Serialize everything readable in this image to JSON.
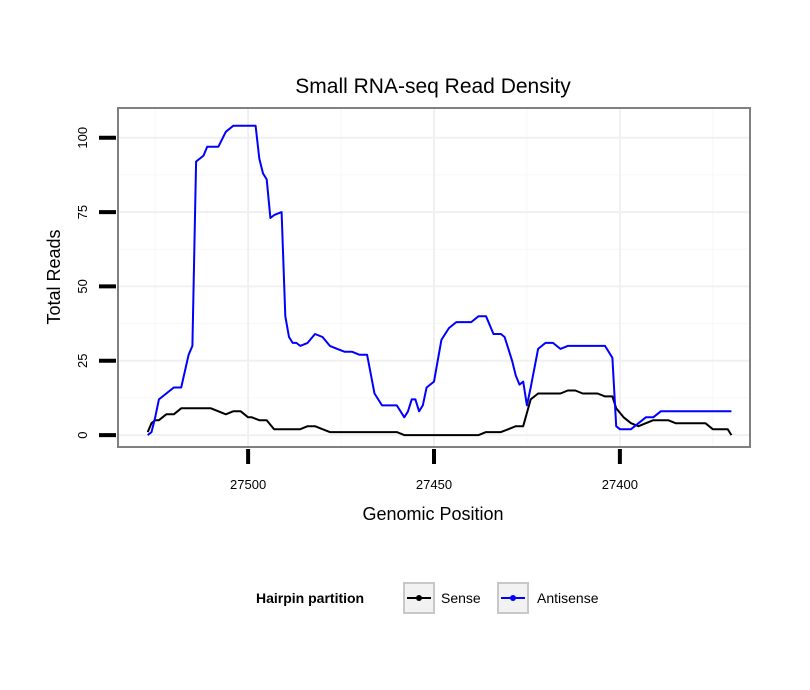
{
  "chart_data": {
    "type": "line",
    "title": "Small RNA-seq Read Density",
    "xlabel": "Genomic Position",
    "ylabel": "Total Reads",
    "x_reversed": true,
    "xlim": [
      27535,
      27365
    ],
    "ylim": [
      -4,
      110
    ],
    "x_ticks": [
      27500,
      27450,
      27400
    ],
    "x_tick_labels": [
      "27500",
      "27450",
      "27400"
    ],
    "y_ticks": [
      0,
      25,
      50,
      75,
      100
    ],
    "y_tick_labels": [
      "0",
      "25",
      "50",
      "75",
      "100"
    ],
    "grid": true,
    "legend": {
      "title": "Hairpin partition",
      "position": "bottom",
      "entries": [
        "Sense",
        "Antisense"
      ]
    },
    "series": [
      {
        "name": "Sense",
        "color": "#000000",
        "x": [
          27527,
          27526,
          27525,
          27524,
          27522,
          27520,
          27518,
          27516,
          27514,
          27512,
          27510,
          27508,
          27506,
          27504,
          27502,
          27500,
          27499,
          27497,
          27495,
          27493,
          27490,
          27488,
          27486,
          27484,
          27482,
          27480,
          27478,
          27476,
          27474,
          27472,
          27470,
          27468,
          27466,
          27464,
          27462,
          27460,
          27458,
          27456,
          27454,
          27452,
          27450,
          27448,
          27446,
          27444,
          27442,
          27440,
          27438,
          27436,
          27434,
          27432,
          27430,
          27428,
          27426,
          27424,
          27422,
          27420,
          27418,
          27416,
          27414,
          27412,
          27410,
          27408,
          27406,
          27404,
          27402,
          27401,
          27399,
          27397,
          27395,
          27393,
          27391,
          27389,
          27387,
          27385,
          27383,
          27381,
          27379,
          27377,
          27375,
          27373,
          27371,
          27370
        ],
        "values": [
          1,
          4,
          5,
          5,
          7,
          7,
          9,
          9,
          9,
          9,
          9,
          8,
          7,
          8,
          8,
          6,
          6,
          5,
          5,
          2,
          2,
          2,
          2,
          3,
          3,
          2,
          1,
          1,
          1,
          1,
          1,
          1,
          1,
          1,
          1,
          1,
          0,
          0,
          0,
          0,
          0,
          0,
          0,
          0,
          0,
          0,
          0,
          1,
          1,
          1,
          2,
          3,
          3,
          12,
          14,
          14,
          14,
          14,
          15,
          15,
          14,
          14,
          14,
          13,
          13,
          9,
          6,
          4,
          3,
          4,
          5,
          5,
          5,
          4,
          4,
          4,
          4,
          4,
          2,
          2,
          2,
          0
        ]
      },
      {
        "name": "Antisense",
        "color": "#0000ff",
        "x": [
          27527,
          27526,
          27525,
          27524,
          27522,
          27520,
          27518,
          27516,
          27515,
          27514,
          27513,
          27512,
          27511,
          27510,
          27508,
          27506,
          27504,
          27502,
          27500,
          27498,
          27497,
          27496,
          27495,
          27494,
          27493,
          27491,
          27490,
          27489,
          27488,
          27487,
          27486,
          27484,
          27482,
          27480,
          27478,
          27476,
          27474,
          27472,
          27470,
          27468,
          27466,
          27464,
          27462,
          27460,
          27458,
          27457,
          27456,
          27455,
          27454,
          27453,
          27452,
          27450,
          27448,
          27446,
          27444,
          27442,
          27440,
          27438,
          27436,
          27434,
          27433,
          27432,
          27431,
          27430,
          27429,
          27428,
          27427,
          27426,
          27425,
          27424,
          27422,
          27420,
          27418,
          27416,
          27414,
          27412,
          27410,
          27408,
          27406,
          27404,
          27402,
          27401,
          27400,
          27399,
          27397,
          27395,
          27393,
          27391,
          27389,
          27387,
          27385,
          27383,
          27381,
          27379,
          27377,
          27375,
          27373,
          27371,
          27370
        ],
        "values": [
          0,
          1,
          6,
          12,
          14,
          16,
          16,
          27,
          30,
          92,
          93,
          94,
          97,
          97,
          97,
          102,
          104,
          104,
          104,
          104,
          93,
          88,
          86,
          73,
          74,
          75,
          40,
          33,
          31,
          31,
          30,
          31,
          34,
          33,
          30,
          29,
          28,
          28,
          27,
          27,
          14,
          10,
          10,
          10,
          6,
          8,
          12,
          12,
          8,
          10,
          16,
          18,
          32,
          36,
          38,
          38,
          38,
          40,
          40,
          34,
          34,
          34,
          33,
          29,
          25,
          20,
          17,
          18,
          10,
          16,
          29,
          31,
          31,
          29,
          30,
          30,
          30,
          30,
          30,
          30,
          26,
          3,
          2,
          2,
          2,
          4,
          6,
          6,
          8,
          8,
          8,
          8,
          8,
          8,
          8,
          8,
          8,
          8,
          8
        ]
      }
    ]
  }
}
